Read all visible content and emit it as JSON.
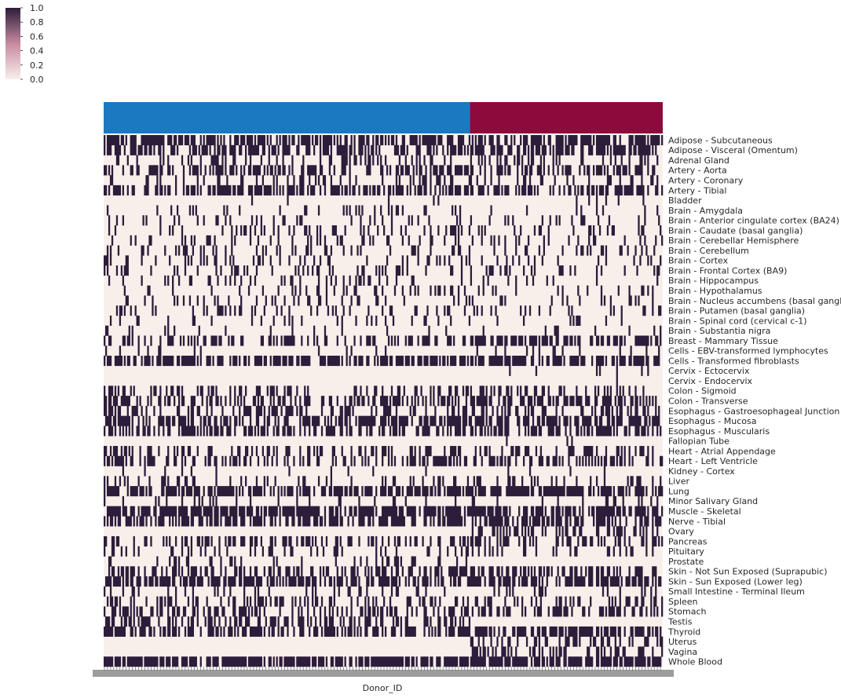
{
  "chart_data": {
    "type": "heatmap",
    "title": "",
    "xlabel": "Donor_ID",
    "ylabel": "",
    "value_range": [
      0,
      1
    ],
    "colormap": {
      "low": "#f8efeb",
      "high": "#2c1d3a"
    },
    "colorbar": {
      "ticks": [
        "0.0",
        "0.2",
        "0.4",
        "0.6",
        "0.8",
        "1.0"
      ],
      "placement": "top-left"
    },
    "column_groups": [
      {
        "fraction": 0.655,
        "color": "#1a79c0"
      },
      {
        "fraction": 0.345,
        "color": "#8c0a3c"
      }
    ],
    "n_columns": 360,
    "rows": [
      {
        "label": "Adipose - Subcutaneous",
        "density": [
          0.65,
          0.7
        ]
      },
      {
        "label": "Adipose - Visceral (Omentum)",
        "density": [
          0.5,
          0.6
        ]
      },
      {
        "label": "Adrenal Gland",
        "density": [
          0.2,
          0.25
        ]
      },
      {
        "label": "Artery - Aorta",
        "density": [
          0.45,
          0.45
        ]
      },
      {
        "label": "Artery - Coronary",
        "density": [
          0.2,
          0.2
        ]
      },
      {
        "label": "Artery - Tibial",
        "density": [
          0.6,
          0.6
        ]
      },
      {
        "label": "Bladder",
        "density": [
          0.02,
          0.03
        ]
      },
      {
        "label": "Brain - Amygdala",
        "density": [
          0.12,
          0.1
        ]
      },
      {
        "label": "Brain - Anterior cingulate cortex (BA24)",
        "density": [
          0.15,
          0.12
        ]
      },
      {
        "label": "Brain - Caudate (basal ganglia)",
        "density": [
          0.2,
          0.15
        ]
      },
      {
        "label": "Brain - Cerebellar Hemisphere",
        "density": [
          0.18,
          0.13
        ]
      },
      {
        "label": "Brain - Cerebellum",
        "density": [
          0.2,
          0.15
        ]
      },
      {
        "label": "Brain - Cortex",
        "density": [
          0.2,
          0.15
        ]
      },
      {
        "label": "Brain - Frontal Cortex (BA9)",
        "density": [
          0.18,
          0.13
        ]
      },
      {
        "label": "Brain - Hippocampus",
        "density": [
          0.15,
          0.12
        ]
      },
      {
        "label": "Brain - Hypothalamus",
        "density": [
          0.15,
          0.12
        ]
      },
      {
        "label": "Brain - Nucleus accumbens (basal ganglia)",
        "density": [
          0.17,
          0.13
        ]
      },
      {
        "label": "Brain - Putamen (basal ganglia)",
        "density": [
          0.15,
          0.12
        ]
      },
      {
        "label": "Brain - Spinal cord (cervical c-1)",
        "density": [
          0.12,
          0.1
        ]
      },
      {
        "label": "Brain - Substantia nigra",
        "density": [
          0.1,
          0.08
        ]
      },
      {
        "label": "Breast - Mammary Tissue",
        "density": [
          0.4,
          0.6
        ]
      },
      {
        "label": "Cells - EBV-transformed lymphocytes",
        "density": [
          0.1,
          0.1
        ]
      },
      {
        "label": "Cells - Transformed fibroblasts",
        "density": [
          0.55,
          0.6
        ]
      },
      {
        "label": "Cervix - Ectocervix",
        "density": [
          0.0,
          0.04
        ]
      },
      {
        "label": "Cervix - Endocervix",
        "density": [
          0.0,
          0.03
        ]
      },
      {
        "label": "Colon - Sigmoid",
        "density": [
          0.3,
          0.3
        ]
      },
      {
        "label": "Colon - Transverse",
        "density": [
          0.45,
          0.45
        ]
      },
      {
        "label": "Esophagus - Gastroesophageal Junction",
        "density": [
          0.35,
          0.35
        ]
      },
      {
        "label": "Esophagus - Mucosa",
        "density": [
          0.55,
          0.6
        ]
      },
      {
        "label": "Esophagus - Muscularis",
        "density": [
          0.5,
          0.5
        ]
      },
      {
        "label": "Fallopian Tube",
        "density": [
          0.0,
          0.02
        ]
      },
      {
        "label": "Heart - Atrial Appendage",
        "density": [
          0.35,
          0.35
        ]
      },
      {
        "label": "Heart - Left Ventricle",
        "density": [
          0.4,
          0.4
        ]
      },
      {
        "label": "Kidney - Cortex",
        "density": [
          0.05,
          0.05
        ]
      },
      {
        "label": "Liver",
        "density": [
          0.2,
          0.2
        ]
      },
      {
        "label": "Lung",
        "density": [
          0.65,
          0.65
        ]
      },
      {
        "label": "Minor Salivary Gland",
        "density": [
          0.1,
          0.1
        ]
      },
      {
        "label": "Muscle - Skeletal",
        "density": [
          0.75,
          0.75
        ]
      },
      {
        "label": "Nerve - Tibial",
        "density": [
          0.55,
          0.55
        ]
      },
      {
        "label": "Ovary",
        "density": [
          0.0,
          0.35
        ]
      },
      {
        "label": "Pancreas",
        "density": [
          0.4,
          0.4
        ]
      },
      {
        "label": "Pituitary",
        "density": [
          0.2,
          0.2
        ]
      },
      {
        "label": "Prostate",
        "density": [
          0.15,
          0.0
        ]
      },
      {
        "label": "Skin - Not Sun Exposed (Suprapubic)",
        "density": [
          0.4,
          0.45
        ]
      },
      {
        "label": "Skin - Sun Exposed (Lower leg)",
        "density": [
          0.65,
          0.65
        ]
      },
      {
        "label": "Small Intestine - Terminal Ileum",
        "density": [
          0.15,
          0.15
        ]
      },
      {
        "label": "Spleen",
        "density": [
          0.25,
          0.25
        ]
      },
      {
        "label": "Stomach",
        "density": [
          0.4,
          0.4
        ]
      },
      {
        "label": "Testis",
        "density": [
          0.45,
          0.0
        ]
      },
      {
        "label": "Thyroid",
        "density": [
          0.6,
          0.6
        ]
      },
      {
        "label": "Uterus",
        "density": [
          0.0,
          0.4
        ]
      },
      {
        "label": "Vagina",
        "density": [
          0.0,
          0.35
        ]
      },
      {
        "label": "Whole Blood",
        "density": [
          0.8,
          0.8
        ]
      }
    ]
  }
}
